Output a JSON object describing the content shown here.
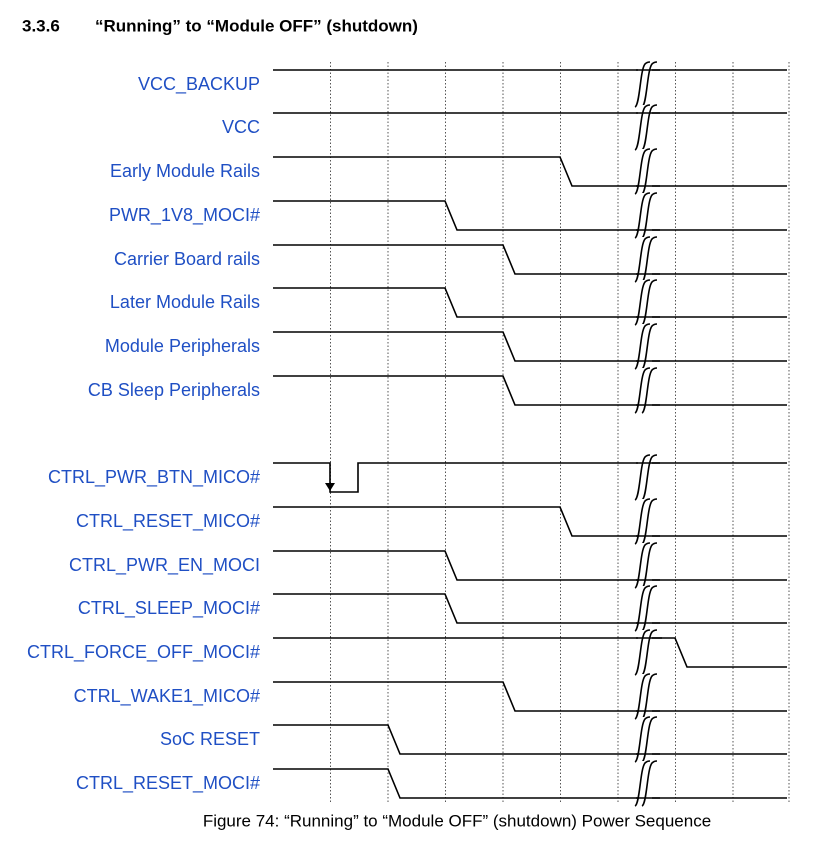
{
  "section": {
    "number": "3.3.6",
    "title": "“Running” to “Module OFF” (shutdown)"
  },
  "signals": [
    "VCC_BACKUP",
    "VCC",
    "Early Module Rails",
    "PWR_1V8_MOCI#",
    "Carrier Board rails",
    "Later Module Rails",
    "Module Peripherals",
    "CB Sleep Peripherals",
    "CTRL_PWR_BTN_MICO#",
    "CTRL_RESET_MICO#",
    "CTRL_PWR_EN_MOCI",
    "CTRL_SLEEP_MOCI#",
    "CTRL_FORCE_OFF_MOCI#",
    "CTRL_WAKE1_MICO#",
    "SoC RESET",
    "CTRL_RESET_MOCI#"
  ],
  "caption": "Figure 74: “Running” to “Module OFF” (shutdown) Power Sequence"
}
